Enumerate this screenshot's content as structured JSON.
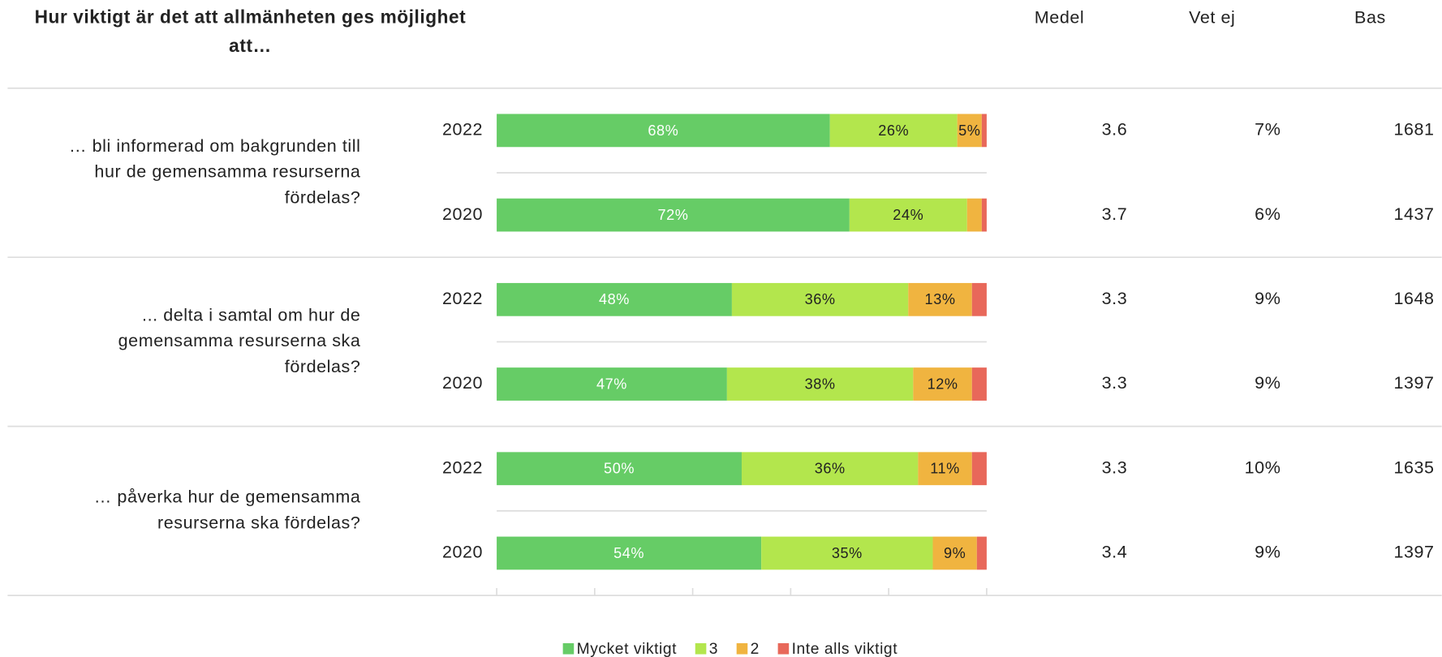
{
  "chart_data": {
    "type": "bar",
    "orientation": "horizontal",
    "stacked": true,
    "title": [
      "Hur viktigt är det att allmänheten ges möjlighet",
      "att…"
    ],
    "groups": [
      {
        "lines": [
          "… bli informerad om bakgrunden till",
          "hur de gemensamma resurserna",
          "fördelas?"
        ]
      },
      {
        "lines": [
          "... delta i samtal om hur de",
          "gemensamma resurserna ska",
          "fördelas?"
        ]
      },
      {
        "lines": [
          "… påverka hur de gemensamma",
          "resurserna ska fördelas?"
        ]
      }
    ],
    "categories": [
      "2022",
      "2020",
      "2022",
      "2020",
      "2022",
      "2020"
    ],
    "series": [
      {
        "name": "Mycket viktigt",
        "color": "#66cc66",
        "label_color": "#ffffff",
        "values": [
          68,
          72,
          48,
          47,
          50,
          54
        ],
        "value_labels": [
          "68%",
          "72%",
          "48%",
          "47%",
          "50%",
          "54%"
        ]
      },
      {
        "name": "3",
        "color": "#b3e64d",
        "label_color": "#222222",
        "values": [
          26,
          24,
          36,
          38,
          36,
          35
        ],
        "value_labels": [
          "26%",
          "24%",
          "36%",
          "38%",
          "36%",
          "35%"
        ]
      },
      {
        "name": "2",
        "color": "#f0b440",
        "label_color": "#222222",
        "values": [
          5,
          3,
          13,
          12,
          11,
          9
        ],
        "value_labels": [
          "5%",
          null,
          "13%",
          "12%",
          "11%",
          "9%"
        ]
      },
      {
        "name": "Inte alls viktigt",
        "color": "#e8685a",
        "label_color": "#222222",
        "values": [
          1,
          1,
          3,
          3,
          3,
          2
        ],
        "value_labels": [
          null,
          null,
          null,
          null,
          null,
          null
        ]
      }
    ],
    "xlim": [
      0,
      100
    ],
    "xticks": [
      0,
      20,
      40,
      60,
      80,
      100
    ],
    "columns": [
      {
        "name": "Medel",
        "values": [
          3.6,
          3.7,
          3.3,
          3.3,
          3.3,
          3.4
        ]
      },
      {
        "name": "Vet ej",
        "values": [
          7,
          6,
          9,
          9,
          10,
          9
        ],
        "value_labels": [
          "7%",
          "6%",
          "9%",
          "9%",
          "10%",
          "9%"
        ]
      },
      {
        "name": "Bas",
        "values": [
          1681,
          1437,
          1648,
          1397,
          1635,
          1397
        ]
      }
    ],
    "legend": "bottom"
  }
}
